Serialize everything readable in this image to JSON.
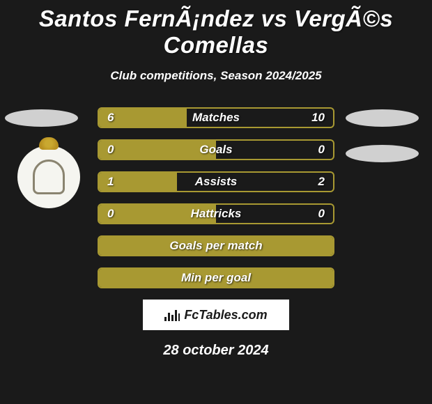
{
  "header": {
    "title": "Santos FernÃ¡ndez vs VergÃ©s Comellas",
    "subtitle": "Club competitions, Season 2024/2025"
  },
  "colors": {
    "background": "#1a1a1a",
    "bar_border": "#a89932",
    "bar_fill": "#a89932",
    "decoration": "#d0d0d0",
    "text": "#ffffff"
  },
  "stats": [
    {
      "label": "Matches",
      "left_value": "6",
      "right_value": "10",
      "left_pct": 37.5,
      "right_pct": 62.5,
      "show_values": true
    },
    {
      "label": "Goals",
      "left_value": "0",
      "right_value": "0",
      "left_pct": 50,
      "right_pct": 50,
      "show_values": true
    },
    {
      "label": "Assists",
      "left_value": "1",
      "right_value": "2",
      "left_pct": 33.3,
      "right_pct": 66.7,
      "show_values": true
    },
    {
      "label": "Hattricks",
      "left_value": "0",
      "right_value": "0",
      "left_pct": 50,
      "right_pct": 50,
      "show_values": true
    },
    {
      "label": "Goals per match",
      "left_value": "",
      "right_value": "",
      "left_pct": 100,
      "right_pct": 0,
      "show_values": false,
      "full_fill": true
    },
    {
      "label": "Min per goal",
      "left_value": "",
      "right_value": "",
      "left_pct": 100,
      "right_pct": 0,
      "show_values": false,
      "full_fill": true
    }
  ],
  "footer": {
    "brand": "FcTables.com",
    "date": "28 october 2024"
  }
}
